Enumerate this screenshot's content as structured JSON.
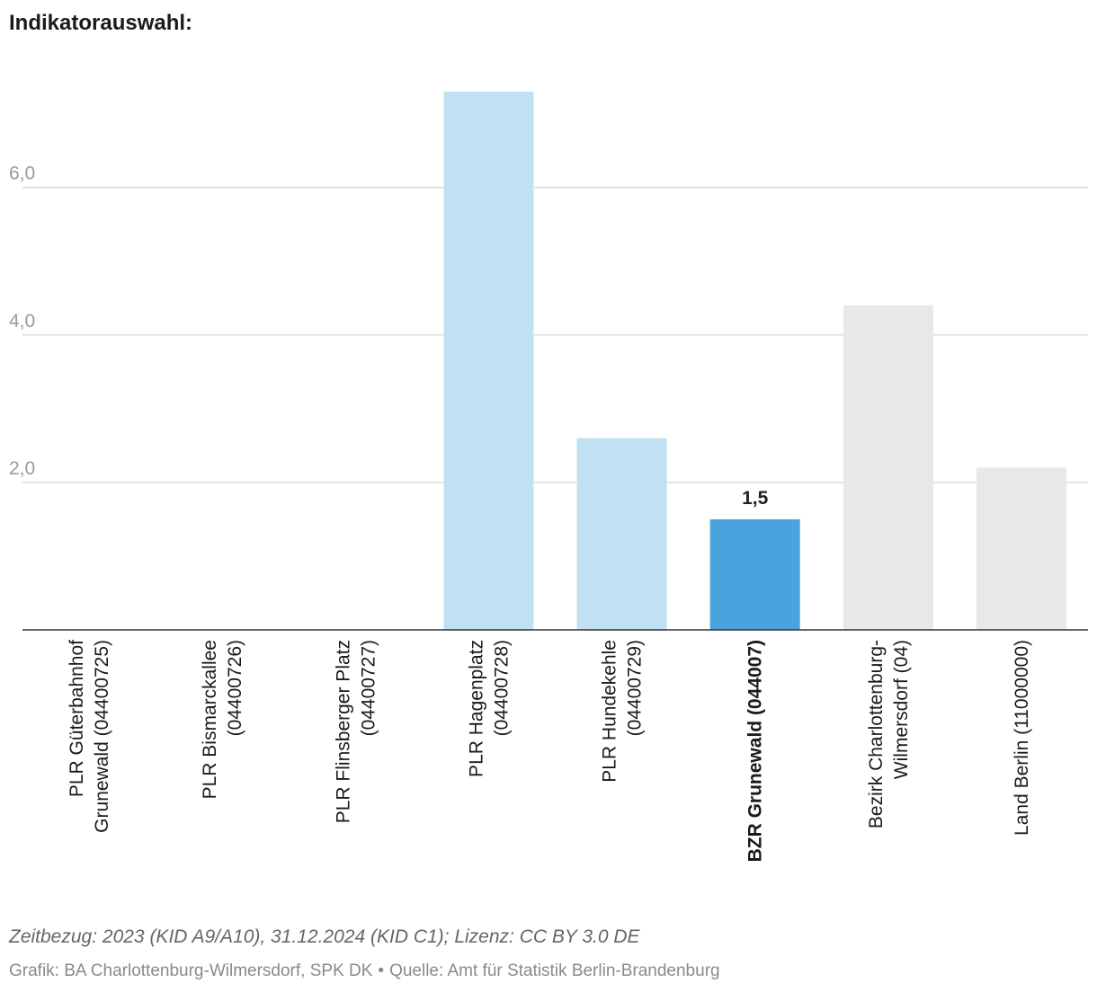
{
  "title": "Indikatorauswahl:",
  "footer": {
    "note": "Zeitbezug: 2023 (KID A9/A10), 31.12.2024 (KID C1); Lizenz: CC BY 3.0 DE",
    "credit_grafik": "Grafik: BA Charlottenburg-Wilmersdorf, SPK DK",
    "credit_separator": "•",
    "credit_quelle": "Quelle: Amt für Statistik Berlin-Brandenburg"
  },
  "chart_data": {
    "type": "bar",
    "ylim": [
      0,
      7.3
    ],
    "yticks": [
      2.0,
      4.0,
      6.0
    ],
    "ytick_labels": [
      "2,0",
      "4,0",
      "6,0"
    ],
    "grid": true,
    "categories": [
      [
        "PLR Güterbahnhof",
        "Grunewald (04400725)"
      ],
      [
        "PLR Bismarckallee",
        "(04400726)"
      ],
      [
        "PLR Flinsberger Platz",
        "(04400727)"
      ],
      [
        "PLR Hagenplatz",
        "(04400728)"
      ],
      [
        "PLR Hundekehle",
        "(04400729)"
      ],
      [
        "BZR Grunewald (044007)"
      ],
      [
        "Bezirk Charlottenburg-",
        "Wilmersdorf (04)"
      ],
      [
        "Land Berlin (11000000)"
      ]
    ],
    "values": [
      null,
      null,
      null,
      7.3,
      2.6,
      1.5,
      4.4,
      2.2
    ],
    "colors": [
      "#c2e0f4",
      "#c2e0f4",
      "#c2e0f4",
      "#c2e0f4",
      "#c2e0f4",
      "#4aa3dc",
      "#e8e8e8",
      "#e8e8e8"
    ],
    "bold_category_index": 5,
    "data_labels": [
      null,
      null,
      null,
      null,
      null,
      "1,5",
      null,
      null
    ]
  }
}
